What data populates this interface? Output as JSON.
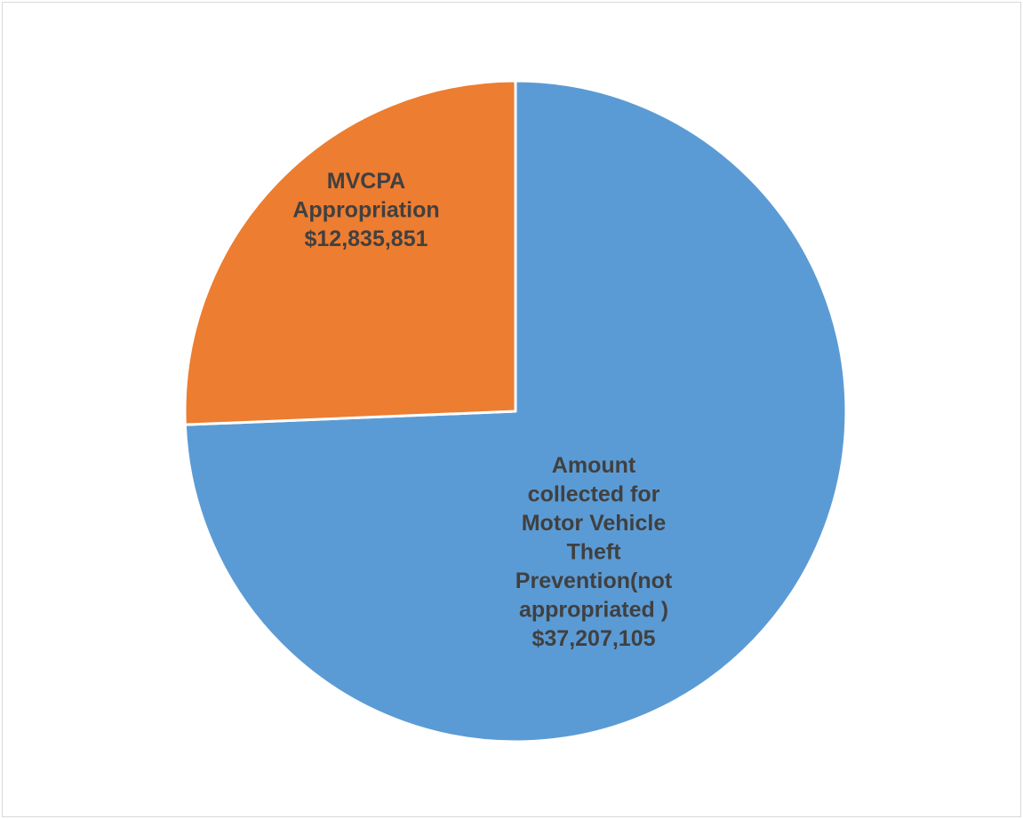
{
  "chart_data": {
    "type": "pie",
    "title": "",
    "start_angle_deg": 0,
    "direction": "clockwise",
    "slices": [
      {
        "name": "Amount collected for Motor Vehicle Theft Prevention(not appropriated )",
        "value": 37207105,
        "color": "#5b9bd5",
        "label_lines": [
          "Amount",
          "collected for",
          "Motor Vehicle",
          "Theft",
          "Prevention(not",
          "appropriated )",
          "$37,207,105"
        ]
      },
      {
        "name": "MVCPA Appropriation",
        "value": 12835851,
        "color": "#ed7d31",
        "label_lines": [
          "MVCPA",
          "Appropriation",
          "$12,835,851"
        ]
      }
    ],
    "legend": "none",
    "slice_border_color": "#ffffff"
  }
}
